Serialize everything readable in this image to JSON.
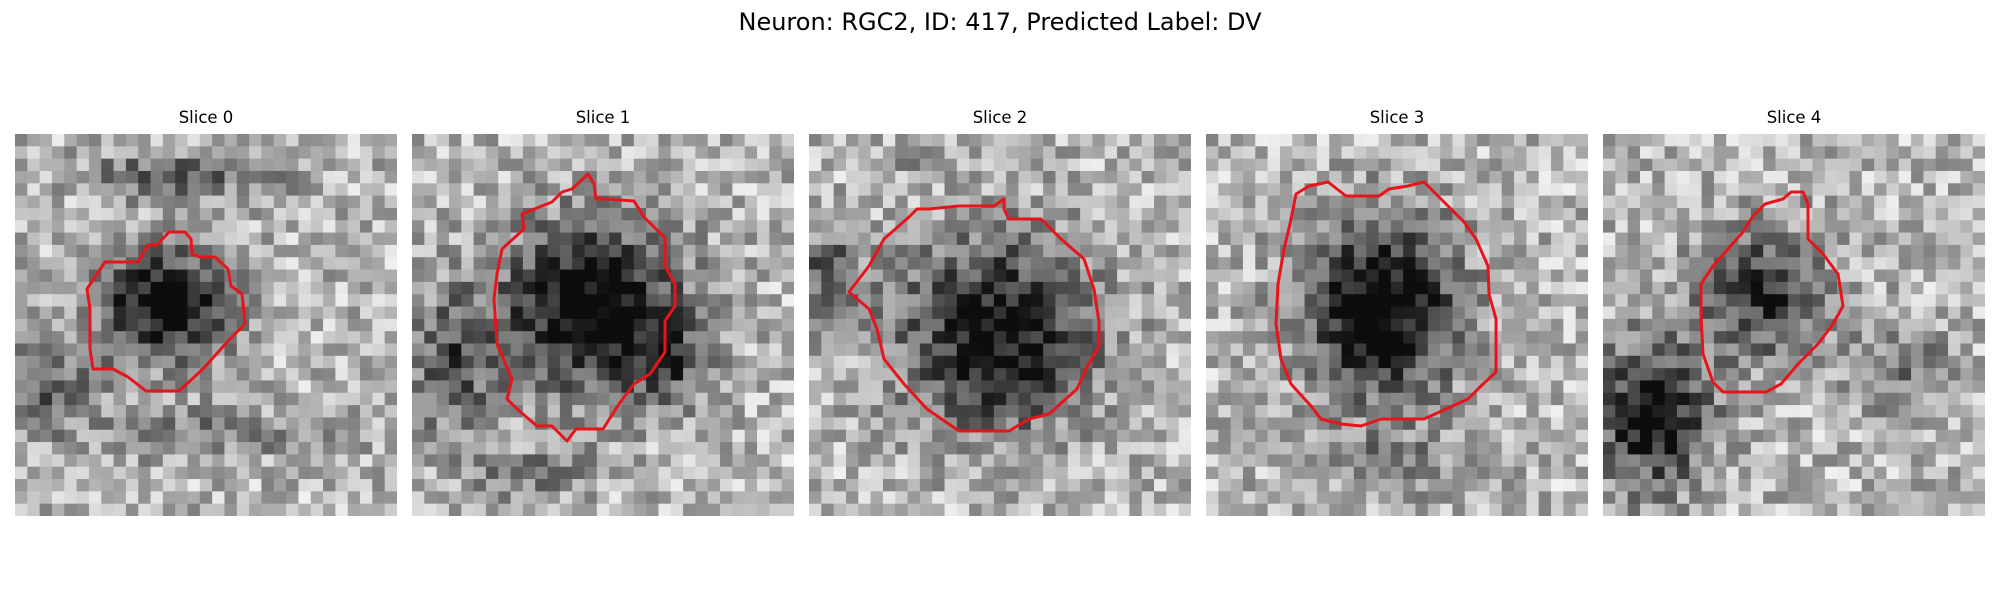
{
  "figure": {
    "title": "Neuron: RGC2, ID: 417, Predicted Label: DV"
  },
  "panels": [
    {
      "title": "Slice 0"
    },
    {
      "title": "Slice 1"
    },
    {
      "title": "Slice 2"
    },
    {
      "title": "Slice 3"
    },
    {
      "title": "Slice 4"
    }
  ],
  "colors": {
    "contour": "#e8141c",
    "background": "#ffffff"
  }
}
